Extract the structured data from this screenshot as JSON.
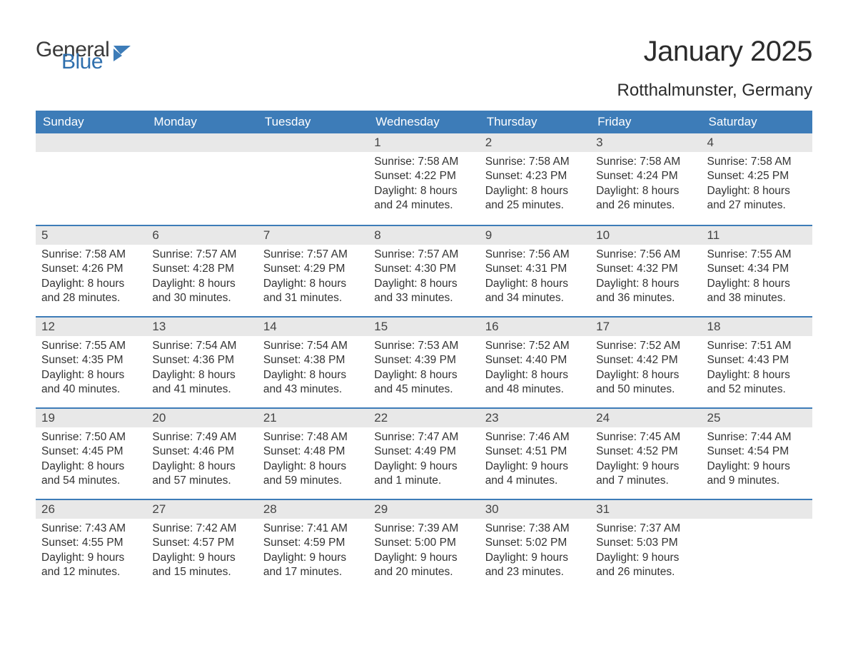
{
  "logo": {
    "text1": "General",
    "text2": "Blue",
    "icon_color": "#3d7cb8"
  },
  "title": "January 2025",
  "location": "Rotthalmunster, Germany",
  "colors": {
    "header_bg": "#3d7cb8",
    "header_text": "#ffffff",
    "daynum_bg": "#e8e8e8",
    "daynum_text": "#444444",
    "body_text": "#333333",
    "divider": "#3d7cb8",
    "page_bg": "#ffffff"
  },
  "typography": {
    "title_fontsize": 40,
    "location_fontsize": 24,
    "header_fontsize": 17,
    "daynum_fontsize": 17,
    "body_fontsize": 15.5
  },
  "day_names": [
    "Sunday",
    "Monday",
    "Tuesday",
    "Wednesday",
    "Thursday",
    "Friday",
    "Saturday"
  ],
  "weeks": [
    [
      null,
      null,
      null,
      {
        "n": "1",
        "sunrise": "7:58 AM",
        "sunset": "4:22 PM",
        "daylight": "8 hours and 24 minutes."
      },
      {
        "n": "2",
        "sunrise": "7:58 AM",
        "sunset": "4:23 PM",
        "daylight": "8 hours and 25 minutes."
      },
      {
        "n": "3",
        "sunrise": "7:58 AM",
        "sunset": "4:24 PM",
        "daylight": "8 hours and 26 minutes."
      },
      {
        "n": "4",
        "sunrise": "7:58 AM",
        "sunset": "4:25 PM",
        "daylight": "8 hours and 27 minutes."
      }
    ],
    [
      {
        "n": "5",
        "sunrise": "7:58 AM",
        "sunset": "4:26 PM",
        "daylight": "8 hours and 28 minutes."
      },
      {
        "n": "6",
        "sunrise": "7:57 AM",
        "sunset": "4:28 PM",
        "daylight": "8 hours and 30 minutes."
      },
      {
        "n": "7",
        "sunrise": "7:57 AM",
        "sunset": "4:29 PM",
        "daylight": "8 hours and 31 minutes."
      },
      {
        "n": "8",
        "sunrise": "7:57 AM",
        "sunset": "4:30 PM",
        "daylight": "8 hours and 33 minutes."
      },
      {
        "n": "9",
        "sunrise": "7:56 AM",
        "sunset": "4:31 PM",
        "daylight": "8 hours and 34 minutes."
      },
      {
        "n": "10",
        "sunrise": "7:56 AM",
        "sunset": "4:32 PM",
        "daylight": "8 hours and 36 minutes."
      },
      {
        "n": "11",
        "sunrise": "7:55 AM",
        "sunset": "4:34 PM",
        "daylight": "8 hours and 38 minutes."
      }
    ],
    [
      {
        "n": "12",
        "sunrise": "7:55 AM",
        "sunset": "4:35 PM",
        "daylight": "8 hours and 40 minutes."
      },
      {
        "n": "13",
        "sunrise": "7:54 AM",
        "sunset": "4:36 PM",
        "daylight": "8 hours and 41 minutes."
      },
      {
        "n": "14",
        "sunrise": "7:54 AM",
        "sunset": "4:38 PM",
        "daylight": "8 hours and 43 minutes."
      },
      {
        "n": "15",
        "sunrise": "7:53 AM",
        "sunset": "4:39 PM",
        "daylight": "8 hours and 45 minutes."
      },
      {
        "n": "16",
        "sunrise": "7:52 AM",
        "sunset": "4:40 PM",
        "daylight": "8 hours and 48 minutes."
      },
      {
        "n": "17",
        "sunrise": "7:52 AM",
        "sunset": "4:42 PM",
        "daylight": "8 hours and 50 minutes."
      },
      {
        "n": "18",
        "sunrise": "7:51 AM",
        "sunset": "4:43 PM",
        "daylight": "8 hours and 52 minutes."
      }
    ],
    [
      {
        "n": "19",
        "sunrise": "7:50 AM",
        "sunset": "4:45 PM",
        "daylight": "8 hours and 54 minutes."
      },
      {
        "n": "20",
        "sunrise": "7:49 AM",
        "sunset": "4:46 PM",
        "daylight": "8 hours and 57 minutes."
      },
      {
        "n": "21",
        "sunrise": "7:48 AM",
        "sunset": "4:48 PM",
        "daylight": "8 hours and 59 minutes."
      },
      {
        "n": "22",
        "sunrise": "7:47 AM",
        "sunset": "4:49 PM",
        "daylight": "9 hours and 1 minute."
      },
      {
        "n": "23",
        "sunrise": "7:46 AM",
        "sunset": "4:51 PM",
        "daylight": "9 hours and 4 minutes."
      },
      {
        "n": "24",
        "sunrise": "7:45 AM",
        "sunset": "4:52 PM",
        "daylight": "9 hours and 7 minutes."
      },
      {
        "n": "25",
        "sunrise": "7:44 AM",
        "sunset": "4:54 PM",
        "daylight": "9 hours and 9 minutes."
      }
    ],
    [
      {
        "n": "26",
        "sunrise": "7:43 AM",
        "sunset": "4:55 PM",
        "daylight": "9 hours and 12 minutes."
      },
      {
        "n": "27",
        "sunrise": "7:42 AM",
        "sunset": "4:57 PM",
        "daylight": "9 hours and 15 minutes."
      },
      {
        "n": "28",
        "sunrise": "7:41 AM",
        "sunset": "4:59 PM",
        "daylight": "9 hours and 17 minutes."
      },
      {
        "n": "29",
        "sunrise": "7:39 AM",
        "sunset": "5:00 PM",
        "daylight": "9 hours and 20 minutes."
      },
      {
        "n": "30",
        "sunrise": "7:38 AM",
        "sunset": "5:02 PM",
        "daylight": "9 hours and 23 minutes."
      },
      {
        "n": "31",
        "sunrise": "7:37 AM",
        "sunset": "5:03 PM",
        "daylight": "9 hours and 26 minutes."
      },
      null
    ]
  ],
  "labels": {
    "sunrise_prefix": "Sunrise: ",
    "sunset_prefix": "Sunset: ",
    "daylight_prefix": "Daylight: "
  }
}
